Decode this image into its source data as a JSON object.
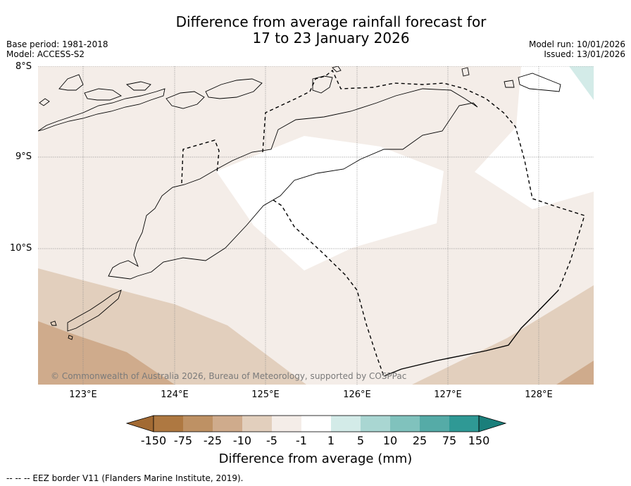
{
  "header": {
    "title_line1": "Difference from average rainfall forecast for",
    "title_line2": "17 to 23 January 2026",
    "base_period": "Base period: 1981-2018",
    "model": "Model: ACCESS-S2",
    "model_run": "Model run: 10/01/2026",
    "issued": "Issued: 13/01/2026"
  },
  "map": {
    "lat_labels": [
      "8°S",
      "9°S",
      "10°S"
    ],
    "lon_labels": [
      "123°E",
      "124°E",
      "125°E",
      "126°E",
      "127°E",
      "128°E"
    ],
    "copyright": "© Commonwealth of Australia 2026, Bureau of Meteorology, supported by COSPPac"
  },
  "colorbar": {
    "ticks": [
      "-150",
      "-75",
      "-25",
      "-10",
      "-5",
      "-1",
      "1",
      "5",
      "10",
      "25",
      "75",
      "150"
    ],
    "label": "Difference from average (mm)",
    "colors": [
      "#a26a33",
      "#ae7841",
      "#be9164",
      "#cfab8c",
      "#e2cfbd",
      "#f4ede8",
      "#ffffff",
      "#d3ebe8",
      "#a9d6d2",
      "#80c2bd",
      "#55aba7",
      "#2f9995",
      "#1a7f7b"
    ]
  },
  "footnote": "--  --  -- EEZ border V11 (Flanders Marine Institute, 2019)."
}
